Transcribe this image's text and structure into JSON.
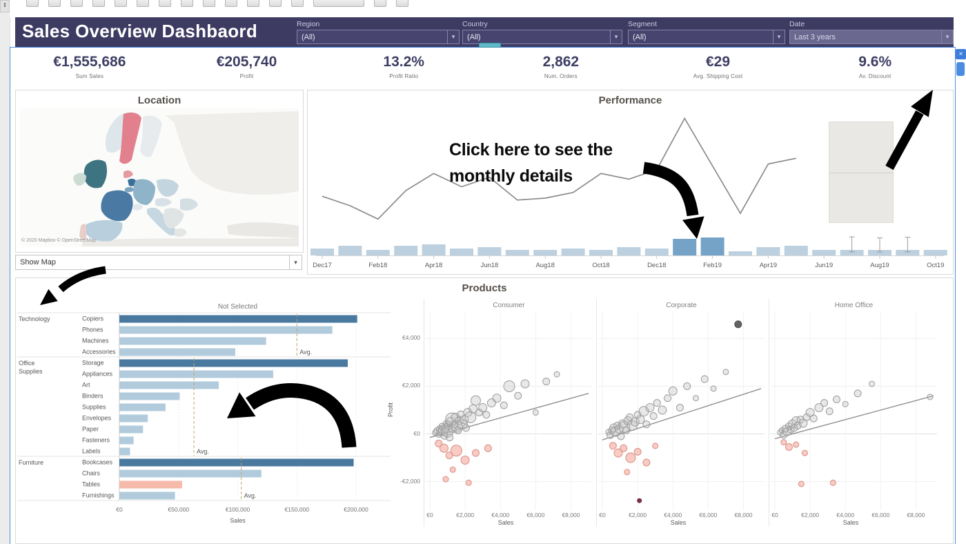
{
  "chrome": {
    "caret": "▾",
    "close": "×",
    "pane_toggle": "⇕"
  },
  "toolbar": {
    "icons": [
      "tableau-logo",
      "undo",
      "redo",
      "replay",
      "save",
      "add-data",
      "pause-updates",
      "new-worksheet",
      "duplicate-sheet",
      "clear-sheet",
      "swap-axes",
      "sort-ascending",
      "sort-descending",
      "fit-selector",
      "highlight",
      "presentation-mode"
    ]
  },
  "header": {
    "title": "Sales Overview Dashbaord"
  },
  "filters": [
    {
      "label": "Region",
      "value": "(All)"
    },
    {
      "label": "Country",
      "value": "(All)"
    },
    {
      "label": "Segment",
      "value": "(All)"
    },
    {
      "label": "Date",
      "value": "Last 3 years"
    }
  ],
  "kpis": [
    {
      "value": "€1,555,686",
      "label": "Sum Sales"
    },
    {
      "value": "€205,740",
      "label": "Profit"
    },
    {
      "value": "13.2%",
      "label": "Profit Ratio"
    },
    {
      "value": "2,862",
      "label": "Num. Orders"
    },
    {
      "value": "€29",
      "label": "Avg. Shipping Cost"
    },
    {
      "value": "9.6%",
      "label": "Av. Discount"
    }
  ],
  "location": {
    "title": "Location",
    "attribution": "© 2020 Mapbox © OpenStreetMap",
    "show_map_label": "Show Map"
  },
  "performance_panel": {
    "title": "Performance",
    "annotation": "Click here to see the monthly details"
  },
  "products_panel": {
    "title": "Products"
  },
  "chart_data": [
    {
      "name": "performance",
      "type": "line+bar",
      "x": [
        "Dec17",
        "Jan18",
        "Feb18",
        "Mar18",
        "Apr18",
        "May18",
        "Jun18",
        "Jul18",
        "Aug18",
        "Sep18",
        "Oct18",
        "Nov18",
        "Dec18",
        "Jan19",
        "Feb19",
        "Mar19",
        "Apr19",
        "May19",
        "Jun19",
        "Jul19",
        "Aug19",
        "Sep19",
        "Oct19"
      ],
      "line_series": {
        "name": "Profit (k€)",
        "values": [
          8.5,
          6,
          2.5,
          10,
          14.5,
          11,
          13.5,
          7.5,
          8,
          9.5,
          14.5,
          13,
          15.5,
          29,
          16.5,
          4,
          17,
          18.5,
          null,
          null,
          null,
          null,
          null
        ]
      },
      "bar_series": {
        "name": "Sales (k€)",
        "values": [
          55,
          77,
          44,
          77,
          88,
          55,
          66,
          44,
          44,
          55,
          44,
          66,
          55,
          132,
          143,
          33,
          66,
          77,
          44,
          44,
          44,
          44,
          44
        ]
      },
      "highlight_indices": [
        13,
        14
      ],
      "whiskers": [
        {
          "index": 19,
          "low": 28,
          "high": 148
        },
        {
          "index": 20,
          "low": 28,
          "high": 140
        },
        {
          "index": 21,
          "low": 28,
          "high": 145
        }
      ]
    },
    {
      "name": "category-sales",
      "type": "bar",
      "title": "Not Selected",
      "xlabel": "Sales",
      "xlim": [
        0,
        200000
      ],
      "ticks": [
        0,
        50000,
        100000,
        150000,
        200000
      ],
      "tick_labels": [
        "€0",
        "€50,000",
        "€100,000",
        "€150,000",
        "€200,000"
      ],
      "avg_label": "Avg.",
      "groups": [
        {
          "category": "Technology",
          "label_lines": [
            "Technology"
          ],
          "avg": 150000,
          "items": [
            {
              "label": "Copiers",
              "value": 201000,
              "color": "dark"
            },
            {
              "label": "Phones",
              "value": 180000,
              "color": "light"
            },
            {
              "label": "Machines",
              "value": 124000,
              "color": "light"
            },
            {
              "label": "Accessories",
              "value": 98000,
              "color": "light"
            }
          ]
        },
        {
          "category": "Office Supplies",
          "label_lines": [
            "Office",
            "Supplies"
          ],
          "avg": 63000,
          "items": [
            {
              "label": "Storage",
              "value": 193000,
              "color": "dark"
            },
            {
              "label": "Appliances",
              "value": 130000,
              "color": "light"
            },
            {
              "label": "Art",
              "value": 84000,
              "color": "light"
            },
            {
              "label": "Binders",
              "value": 51000,
              "color": "light"
            },
            {
              "label": "Supplies",
              "value": 39000,
              "color": "light"
            },
            {
              "label": "Envelopes",
              "value": 24000,
              "color": "light"
            },
            {
              "label": "Paper",
              "value": 20000,
              "color": "light"
            },
            {
              "label": "Fasteners",
              "value": 12000,
              "color": "light"
            },
            {
              "label": "Labels",
              "value": 9000,
              "color": "light"
            }
          ]
        },
        {
          "category": "Furniture",
          "label_lines": [
            "Furniture"
          ],
          "avg": 103000,
          "items": [
            {
              "label": "Bookcases",
              "value": 198000,
              "color": "dark"
            },
            {
              "label": "Chairs",
              "value": 120000,
              "color": "light"
            },
            {
              "label": "Tables",
              "value": 53000,
              "color": "salmon"
            },
            {
              "label": "Furnishings",
              "value": 47000,
              "color": "light"
            }
          ]
        }
      ]
    },
    {
      "name": "products-scatter",
      "type": "scatter",
      "xlabel": "Sales",
      "ylabel": "Profit",
      "xlim": [
        0,
        9000
      ],
      "ylim": [
        -3200,
        5200
      ],
      "x_ticks": [
        {
          "label": "€0",
          "v": 0
        },
        {
          "label": "€2,000",
          "v": 2000
        },
        {
          "label": "€4,000",
          "v": 4000
        },
        {
          "label": "€6,000",
          "v": 6000
        },
        {
          "label": "€8,000",
          "v": 8000
        }
      ],
      "y_ticks": [
        {
          "label": "€4,000",
          "v": 4000
        },
        {
          "label": "€2,000",
          "v": 2000
        },
        {
          "label": "€0",
          "v": 0
        },
        {
          "label": "-€2,000",
          "v": -2000
        }
      ],
      "panels": [
        {
          "name": "Consumer",
          "trend": [
            [
              0,
              -150
            ],
            [
              9000,
              1700
            ]
          ],
          "points": [
            [
              300,
              50,
              4
            ],
            [
              420,
              120,
              5
            ],
            [
              500,
              -30,
              4
            ],
            [
              560,
              200,
              5
            ],
            [
              640,
              90,
              6
            ],
            [
              700,
              300,
              5
            ],
            [
              760,
              150,
              7
            ],
            [
              820,
              -80,
              5
            ],
            [
              880,
              250,
              6
            ],
            [
              940,
              420,
              5
            ],
            [
              1000,
              100,
              8
            ],
            [
              1060,
              350,
              6
            ],
            [
              1120,
              -150,
              5
            ],
            [
              1180,
              500,
              7
            ],
            [
              1240,
              620,
              9
            ],
            [
              1300,
              220,
              6
            ],
            [
              1380,
              400,
              5
            ],
            [
              1450,
              700,
              6
            ],
            [
              1520,
              300,
              8
            ],
            [
              1600,
              150,
              5
            ],
            [
              1680,
              550,
              6
            ],
            [
              1750,
              820,
              5
            ],
            [
              1850,
              400,
              7
            ],
            [
              1950,
              600,
              6
            ],
            [
              2050,
              250,
              5
            ],
            [
              2150,
              900,
              6
            ],
            [
              2300,
              700,
              8
            ],
            [
              2450,
              1050,
              6
            ],
            [
              2600,
              1400,
              7
            ],
            [
              2800,
              900,
              5
            ],
            [
              3000,
              1100,
              6
            ],
            [
              3200,
              800,
              5
            ],
            [
              3500,
              1300,
              6
            ],
            [
              3800,
              1500,
              6
            ],
            [
              4200,
              1200,
              5
            ],
            [
              4500,
              2000,
              8
            ],
            [
              5000,
              1600,
              5
            ],
            [
              5400,
              2100,
              6
            ],
            [
              6000,
              900,
              4
            ],
            [
              6600,
              2200,
              5
            ],
            [
              7200,
              2500,
              4
            ],
            [
              500,
              -400,
              5,
              1
            ],
            [
              800,
              -600,
              6,
              1
            ],
            [
              1100,
              -900,
              5,
              1
            ],
            [
              1500,
              -700,
              8,
              1
            ],
            [
              2000,
              -1100,
              6,
              1
            ],
            [
              2600,
              -800,
              5,
              1
            ],
            [
              1300,
              -1500,
              4,
              1
            ],
            [
              900,
              -1900,
              4,
              1
            ],
            [
              3300,
              -600,
              5,
              1
            ],
            [
              2200,
              -2050,
              4,
              1
            ]
          ]
        },
        {
          "name": "Corporate",
          "trend": [
            [
              0,
              -250
            ],
            [
              9000,
              1900
            ]
          ],
          "points": [
            [
              350,
              80,
              4
            ],
            [
              450,
              -50,
              5
            ],
            [
              550,
              150,
              5
            ],
            [
              650,
              250,
              6
            ],
            [
              750,
              100,
              7
            ],
            [
              850,
              350,
              5
            ],
            [
              950,
              200,
              6
            ],
            [
              1050,
              -100,
              5
            ],
            [
              1150,
              420,
              6
            ],
            [
              1250,
              300,
              8
            ],
            [
              1350,
              150,
              5
            ],
            [
              1450,
              550,
              6
            ],
            [
              1550,
              700,
              5
            ],
            [
              1700,
              350,
              7
            ],
            [
              1850,
              500,
              6
            ],
            [
              2000,
              800,
              5
            ],
            [
              2150,
              600,
              6
            ],
            [
              2350,
              950,
              7
            ],
            [
              2500,
              400,
              5
            ],
            [
              2700,
              1100,
              6
            ],
            [
              2900,
              750,
              5
            ],
            [
              3100,
              1300,
              5
            ],
            [
              3400,
              1000,
              6
            ],
            [
              3700,
              1500,
              5
            ],
            [
              4000,
              1800,
              6
            ],
            [
              4400,
              1100,
              5
            ],
            [
              4800,
              2000,
              5
            ],
            [
              5300,
              1500,
              4
            ],
            [
              5800,
              2300,
              5
            ],
            [
              6300,
              1900,
              4
            ],
            [
              7000,
              2600,
              4
            ],
            [
              7700,
              4600,
              5,
              2
            ],
            [
              600,
              -500,
              5,
              1
            ],
            [
              900,
              -800,
              6,
              1
            ],
            [
              1200,
              -600,
              5,
              1
            ],
            [
              1600,
              -1000,
              7,
              1
            ],
            [
              2000,
              -750,
              5,
              1
            ],
            [
              2500,
              -1200,
              5,
              1
            ],
            [
              1400,
              -1600,
              4,
              1
            ],
            [
              2100,
              -2800,
              3,
              3
            ],
            [
              3000,
              -500,
              4,
              1
            ]
          ]
        },
        {
          "name": "Home Office",
          "trend": [
            [
              0,
              -200
            ],
            [
              9000,
              1600
            ]
          ],
          "points": [
            [
              300,
              60,
              4
            ],
            [
              400,
              150,
              4
            ],
            [
              500,
              -40,
              5
            ],
            [
              600,
              220,
              5
            ],
            [
              700,
              100,
              6
            ],
            [
              800,
              320,
              5
            ],
            [
              900,
              180,
              5
            ],
            [
              1000,
              420,
              6
            ],
            [
              1100,
              250,
              5
            ],
            [
              1200,
              550,
              6
            ],
            [
              1300,
              350,
              5
            ],
            [
              1450,
              600,
              5
            ],
            [
              1600,
              450,
              6
            ],
            [
              1800,
              700,
              5
            ],
            [
              2000,
              900,
              6
            ],
            [
              2200,
              650,
              5
            ],
            [
              2500,
              1100,
              6
            ],
            [
              2800,
              1300,
              5
            ],
            [
              3100,
              950,
              5
            ],
            [
              3500,
              1450,
              5
            ],
            [
              4000,
              1250,
              4
            ],
            [
              4700,
              1700,
              5
            ],
            [
              5500,
              2100,
              4
            ],
            [
              8800,
              1550,
              4
            ],
            [
              500,
              -350,
              4,
              1
            ],
            [
              800,
              -550,
              5,
              1
            ],
            [
              1200,
              -450,
              4,
              1
            ],
            [
              1700,
              -800,
              4,
              1
            ],
            [
              1500,
              -2100,
              4,
              1
            ],
            [
              3300,
              -2050,
              4,
              1
            ]
          ]
        }
      ]
    }
  ]
}
